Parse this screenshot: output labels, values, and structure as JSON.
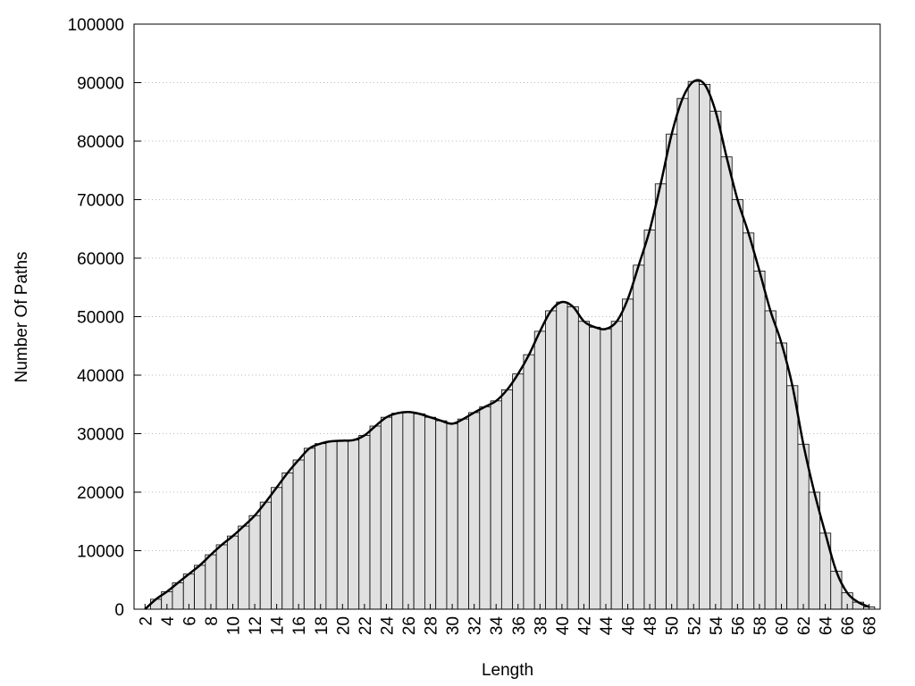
{
  "chart_data": {
    "type": "bar",
    "x_label": "Length",
    "y_label": "Number Of Paths",
    "x": [
      2,
      3,
      4,
      5,
      6,
      7,
      8,
      9,
      10,
      11,
      12,
      13,
      14,
      15,
      16,
      17,
      18,
      19,
      20,
      21,
      22,
      23,
      24,
      25,
      26,
      27,
      28,
      29,
      30,
      31,
      32,
      33,
      34,
      35,
      36,
      37,
      38,
      39,
      40,
      41,
      42,
      43,
      44,
      45,
      46,
      47,
      48,
      49,
      50,
      51,
      52,
      53,
      54,
      55,
      56,
      57,
      58,
      59,
      60,
      61,
      62,
      63,
      64,
      65,
      66,
      67,
      68
    ],
    "values": [
      0,
      1700,
      3000,
      4500,
      6000,
      7500,
      9300,
      11000,
      12500,
      14200,
      16000,
      18300,
      20800,
      23300,
      25500,
      27500,
      28300,
      28700,
      28800,
      28900,
      29700,
      31300,
      32800,
      33500,
      33700,
      33400,
      32800,
      32200,
      31700,
      32500,
      33600,
      34600,
      35600,
      37500,
      40200,
      43500,
      47500,
      51000,
      52500,
      51700,
      49200,
      48200,
      47900,
      49200,
      53000,
      58800,
      64800,
      72700,
      81200,
      87300,
      90200,
      89700,
      85100,
      77300,
      70000,
      64300,
      57800,
      51000,
      45500,
      38200,
      28200,
      20000,
      13000,
      6500,
      2800,
      1200,
      400
    ],
    "color": "#e0e0e0",
    "line_overlay": true,
    "line_color": "#000000",
    "xlim": [
      1,
      69
    ],
    "xticks": [
      2,
      4,
      6,
      8,
      10,
      12,
      14,
      16,
      18,
      20,
      22,
      24,
      26,
      28,
      30,
      32,
      34,
      36,
      38,
      40,
      42,
      44,
      46,
      48,
      50,
      52,
      54,
      56,
      58,
      60,
      62,
      64,
      66,
      68
    ],
    "ylim": [
      0,
      100000
    ],
    "yticks": [
      0,
      10000,
      20000,
      30000,
      40000,
      50000,
      60000,
      70000,
      80000,
      90000,
      100000
    ],
    "grid": true
  }
}
